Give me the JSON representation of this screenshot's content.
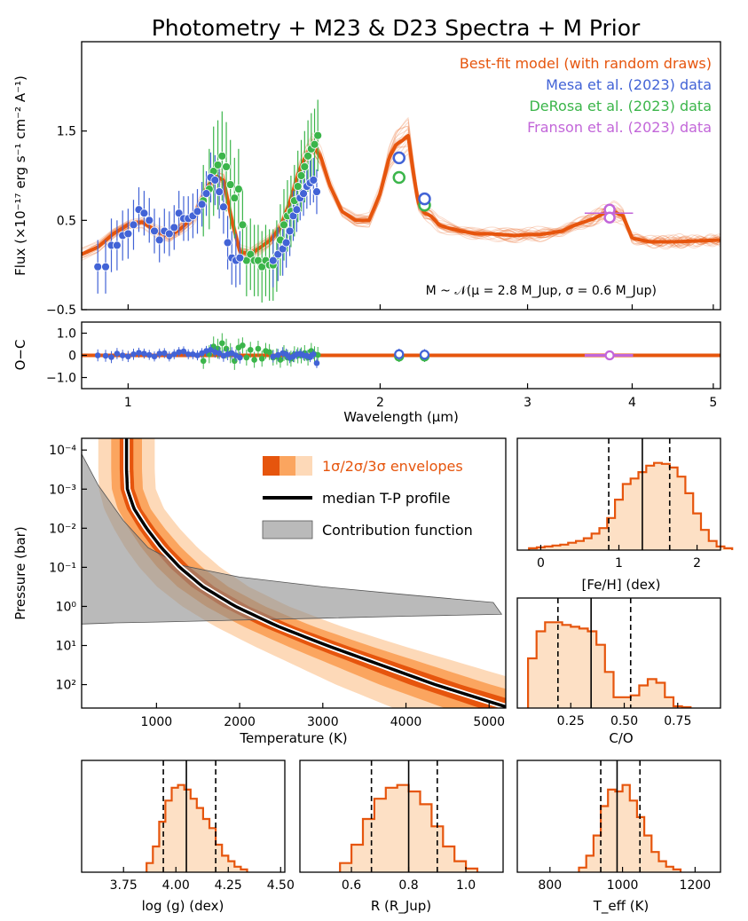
{
  "figure": {
    "title": "Photometry + M23 & D23 Spectra + M Prior",
    "colors": {
      "model": "#e6550d",
      "mesa": "#4263d6",
      "derosa": "#3bb54a",
      "franson": "#c266d9",
      "contribution": "#8c8c8c",
      "hist_fill": "#fde0c5"
    }
  },
  "chart_data": [
    {
      "id": "spectrum",
      "type": "line",
      "title": "Photometry + M23 & D23 Spectra + M Prior",
      "ylabel": "Flux (×10⁻¹⁷ erg s⁻¹ cm⁻² A⁻¹)",
      "xscale": "log",
      "xlim": [
        0.88,
        5.1
      ],
      "ylim": [
        -0.5,
        2.5
      ],
      "yticks": [
        "1.5",
        "0.5",
        "−0.5"
      ],
      "legend": [
        "Best-fit model (with random draws)",
        "Mesa et al. (2023) data",
        "DeRosa et al. (2023) data",
        "Franson et al. (2023) data"
      ],
      "annotation": "M ~ 𝒩(μ = 2.8 M_Jup, σ = 0.6 M_Jup)",
      "model": {
        "x": [
          0.88,
          0.92,
          0.96,
          1.0,
          1.04,
          1.08,
          1.12,
          1.16,
          1.2,
          1.24,
          1.27,
          1.3,
          1.33,
          1.36,
          1.4,
          1.44,
          1.48,
          1.52,
          1.56,
          1.6,
          1.63,
          1.66,
          1.7,
          1.74,
          1.8,
          1.87,
          1.94,
          2.0,
          2.05,
          2.09,
          2.13,
          2.16,
          2.19,
          2.22,
          2.26,
          2.3,
          2.35,
          2.4,
          2.5,
          2.6,
          2.7,
          2.8,
          2.9,
          3.0,
          3.1,
          3.2,
          3.3,
          3.4,
          3.5,
          3.6,
          3.7,
          3.8,
          3.9,
          4.0,
          4.2,
          4.5,
          4.8,
          5.1
        ],
        "y": [
          0.12,
          0.2,
          0.35,
          0.45,
          0.48,
          0.38,
          0.32,
          0.42,
          0.55,
          0.85,
          1.0,
          0.95,
          0.5,
          0.15,
          0.12,
          0.2,
          0.28,
          0.42,
          0.7,
          1.05,
          1.22,
          1.35,
          1.2,
          0.9,
          0.6,
          0.5,
          0.5,
          0.8,
          1.2,
          1.35,
          1.4,
          1.45,
          1.05,
          0.7,
          0.58,
          0.55,
          0.45,
          0.42,
          0.38,
          0.35,
          0.35,
          0.34,
          0.33,
          0.34,
          0.34,
          0.36,
          0.38,
          0.44,
          0.48,
          0.52,
          0.58,
          0.6,
          0.55,
          0.3,
          0.26,
          0.26,
          0.27,
          0.28
        ]
      },
      "mesa": {
        "x": [
          0.92,
          0.94,
          0.955,
          0.97,
          0.985,
          1.0,
          1.015,
          1.03,
          1.045,
          1.06,
          1.075,
          1.09,
          1.105,
          1.12,
          1.135,
          1.15,
          1.165,
          1.18,
          1.195,
          1.21,
          1.225,
          1.24,
          1.255,
          1.27,
          1.285,
          1.3,
          1.315,
          1.33,
          1.345,
          1.36,
          1.49,
          1.51,
          1.53,
          1.545,
          1.56,
          1.575,
          1.59,
          1.605,
          1.62,
          1.635,
          1.65,
          1.665,
          1.68,
          2.107,
          2.26
        ],
        "y": [
          -0.02,
          -0.02,
          0.22,
          0.22,
          0.33,
          0.35,
          0.45,
          0.62,
          0.58,
          0.5,
          0.38,
          0.28,
          0.38,
          0.35,
          0.42,
          0.58,
          0.52,
          0.52,
          0.55,
          0.6,
          0.68,
          0.8,
          0.98,
          0.95,
          0.82,
          0.65,
          0.25,
          0.08,
          0.05,
          0.08,
          0.05,
          0.12,
          0.18,
          0.25,
          0.38,
          0.55,
          0.62,
          0.75,
          0.8,
          0.88,
          0.92,
          0.95,
          0.82,
          1.2,
          0.74
        ],
        "yerr": [
          0.3,
          0.3,
          0.3,
          0.28,
          0.28,
          0.28,
          0.28,
          0.25,
          0.25,
          0.25,
          0.25,
          0.25,
          0.25,
          0.25,
          0.25,
          0.25,
          0.25,
          0.25,
          0.25,
          0.25,
          0.25,
          0.25,
          0.28,
          0.28,
          0.3,
          0.3,
          0.3,
          0.3,
          0.3,
          0.3,
          0.3,
          0.3,
          0.3,
          0.28,
          0.28,
          0.28,
          0.25,
          0.25,
          0.25,
          0.25,
          0.25,
          0.25,
          0.25,
          0.03,
          0.03
        ],
        "oc": [
          0.0,
          -0.02,
          -0.08,
          0.08,
          0.0,
          -0.05,
          0.05,
          0.12,
          0.08,
          0.02,
          -0.05,
          0.08,
          0.1,
          -0.05,
          0.05,
          0.15,
          0.18,
          0.05,
          0.05,
          0.0,
          0.1,
          0.2,
          0.25,
          0.15,
          0.1,
          -0.02,
          0.05,
          0.1,
          0.0,
          -0.1,
          -0.05,
          0.02,
          0.1,
          0.05,
          -0.1,
          -0.05,
          0.05,
          0.08,
          0.0,
          -0.02,
          -0.08,
          0.05,
          -0.35,
          0.05,
          0.03
        ]
      },
      "derosa": {
        "x": [
          1.23,
          1.25,
          1.265,
          1.28,
          1.295,
          1.31,
          1.325,
          1.34,
          1.355,
          1.37,
          1.385,
          1.4,
          1.415,
          1.43,
          1.445,
          1.46,
          1.475,
          1.49,
          1.505,
          1.52,
          1.535,
          1.55,
          1.565,
          1.58,
          1.595,
          1.61,
          1.625,
          1.64,
          1.655,
          1.67,
          1.685,
          2.107,
          2.26
        ],
        "y": [
          0.72,
          0.85,
          1.05,
          1.12,
          1.22,
          1.1,
          0.9,
          0.75,
          0.85,
          0.45,
          0.05,
          0.12,
          0.05,
          0.05,
          -0.02,
          0.05,
          0.0,
          0.0,
          0.1,
          0.28,
          0.45,
          0.55,
          0.6,
          0.72,
          0.88,
          1.0,
          1.1,
          1.22,
          1.3,
          1.35,
          1.45,
          0.98,
          0.67
        ],
        "yerr": [
          0.4,
          0.45,
          0.5,
          0.5,
          0.5,
          0.5,
          0.5,
          0.45,
          0.45,
          0.4,
          0.4,
          0.4,
          0.4,
          0.4,
          0.4,
          0.4,
          0.4,
          0.4,
          0.4,
          0.4,
          0.4,
          0.4,
          0.4,
          0.4,
          0.4,
          0.4,
          0.4,
          0.4,
          0.4,
          0.4,
          0.4,
          0.03,
          0.03
        ],
        "oc": [
          -0.25,
          0.05,
          0.4,
          0.3,
          0.55,
          0.3,
          0.1,
          -0.25,
          0.35,
          0.45,
          -0.1,
          0.25,
          -0.2,
          0.3,
          -0.15,
          0.2,
          0.15,
          -0.1,
          -0.05,
          -0.2,
          0.1,
          -0.1,
          -0.15,
          0.05,
          0.0,
          0.0,
          0.1,
          -0.1,
          0.2,
          0.05,
          0.02,
          -0.05,
          -0.05
        ]
      },
      "franson": {
        "x": [
          3.76
        ],
        "y": [
          0.58
        ],
        "xerr": 0.25,
        "oc": [
          0.0
        ]
      }
    },
    {
      "id": "residuals",
      "type": "scatter",
      "ylabel": "O−C",
      "xlabel": "Wavelength (μm)",
      "ylim": [
        -1.5,
        1.5
      ],
      "yticks": [
        "1.0",
        "0",
        "−1.0"
      ],
      "xticks": [
        "1",
        "2",
        "3",
        "4",
        "5"
      ]
    },
    {
      "id": "tp-profile",
      "type": "area",
      "xlabel": "Temperature (K)",
      "ylabel": "Pressure (bar)",
      "xlim": [
        100,
        5200
      ],
      "ylim_log10_bar": [
        -4.3,
        2.6
      ],
      "xticks": [
        "1000",
        "2000",
        "3000",
        "4000",
        "5000"
      ],
      "yticks": [
        "10⁻⁴",
        "10⁻³",
        "10⁻²",
        "10⁻¹",
        "10⁰",
        "10¹",
        "10²"
      ],
      "legend": [
        "1σ/2σ/3σ envelopes",
        "median T-P profile",
        "Contribution function"
      ],
      "median": {
        "logP": [
          -4.3,
          -3.5,
          -3.0,
          -2.5,
          -2.0,
          -1.5,
          -1.0,
          -0.5,
          0.0,
          0.5,
          1.0,
          1.5,
          2.0,
          2.6
        ],
        "T": [
          640,
          640,
          650,
          730,
          880,
          1060,
          1280,
          1560,
          1950,
          2450,
          3050,
          3700,
          4350,
          5250
        ]
      }
    },
    {
      "id": "hist-feh",
      "type": "bar",
      "xlabel": "[Fe/H] (dex)",
      "xlim": [
        -0.3,
        2.3
      ],
      "xticks": [
        "0",
        "1",
        "2"
      ],
      "median": 1.3,
      "q16": 0.87,
      "q84": 1.65,
      "edges_start": -0.15,
      "bin": 0.1,
      "counts": [
        2,
        3,
        4,
        5,
        6,
        8,
        10,
        13,
        18,
        24,
        35,
        55,
        72,
        78,
        85,
        92,
        95,
        94,
        90,
        80,
        62,
        40,
        22,
        10,
        4,
        2
      ]
    },
    {
      "id": "hist-co",
      "type": "bar",
      "xlabel": "C/O",
      "xlim": [
        0.0,
        0.95
      ],
      "xticks": [
        "0.25",
        "0.50",
        "0.75"
      ],
      "median": 0.345,
      "q16": 0.19,
      "q84": 0.53,
      "edges_start": 0.05,
      "bin": 0.04,
      "counts": [
        55,
        85,
        95,
        95,
        92,
        90,
        88,
        85,
        70,
        40,
        12,
        12,
        14,
        25,
        32,
        28,
        12,
        2,
        1
      ]
    },
    {
      "id": "hist-logg",
      "type": "bar",
      "xlabel": "log (g) (dex)",
      "xlim": [
        3.55,
        4.52
      ],
      "xticks": [
        "3.75",
        "4.00",
        "4.25",
        "4.50"
      ],
      "median": 4.05,
      "q16": 3.94,
      "q84": 4.19,
      "edges_start": 3.86,
      "bin": 0.03,
      "counts": [
        10,
        28,
        55,
        78,
        92,
        95,
        90,
        80,
        70,
        58,
        48,
        30,
        18,
        12,
        6,
        3
      ]
    },
    {
      "id": "hist-radius",
      "type": "bar",
      "xlabel": "R (R_Jup)",
      "xlim": [
        0.42,
        1.13
      ],
      "xticks": [
        "0.6",
        "0.8",
        "1.0"
      ],
      "median": 0.8,
      "q16": 0.67,
      "q84": 0.9,
      "edges_start": 0.56,
      "bin": 0.04,
      "counts": [
        10,
        30,
        58,
        80,
        92,
        95,
        88,
        74,
        50,
        28,
        12,
        4
      ]
    },
    {
      "id": "hist-teff",
      "type": "bar",
      "xlabel": "T_eff (K)",
      "xlim": [
        710,
        1270
      ],
      "xticks": [
        "800",
        "1000",
        "1200"
      ],
      "median": 985,
      "q16": 940,
      "q84": 1048,
      "edges_start": 880,
      "bin": 20,
      "counts": [
        5,
        18,
        40,
        72,
        90,
        88,
        95,
        78,
        60,
        40,
        22,
        12,
        6,
        3
      ]
    }
  ]
}
